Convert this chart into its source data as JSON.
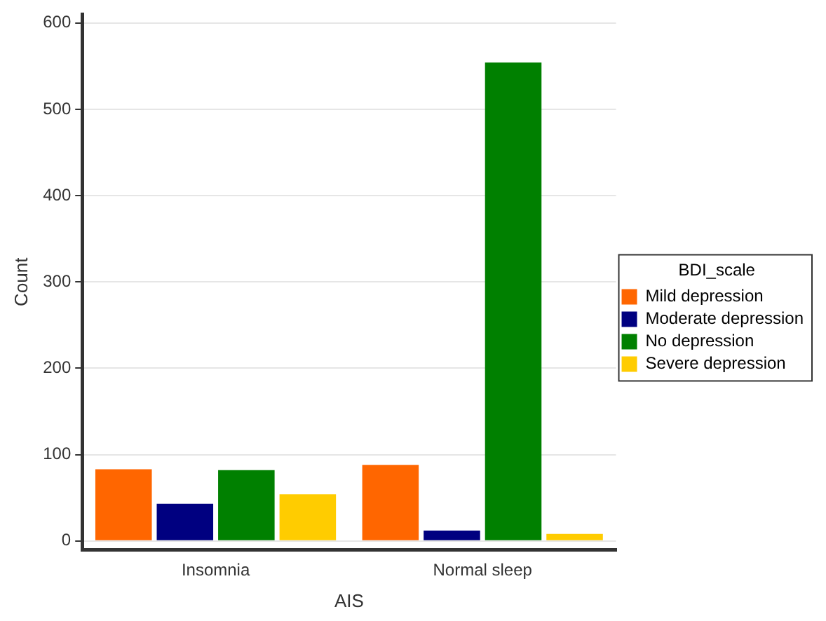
{
  "chart_data": {
    "type": "bar",
    "xlabel": "AIS",
    "ylabel": "Count",
    "legend_title": "BDI_scale",
    "categories": [
      "Insomnia",
      "Normal sleep"
    ],
    "series": [
      {
        "name": "Mild depression",
        "color": "#ff6600",
        "values": [
          83,
          88
        ]
      },
      {
        "name": "Moderate depression",
        "color": "#000080",
        "values": [
          43,
          12
        ]
      },
      {
        "name": "No depression",
        "color": "#008000",
        "values": [
          82,
          554
        ]
      },
      {
        "name": "Severe depression",
        "color": "#ffcc00",
        "values": [
          54,
          8
        ]
      }
    ],
    "ylim": [
      -10,
      610
    ],
    "yticks": [
      0,
      100,
      200,
      300,
      400,
      500,
      600
    ],
    "grid": "y",
    "legend": "right"
  }
}
